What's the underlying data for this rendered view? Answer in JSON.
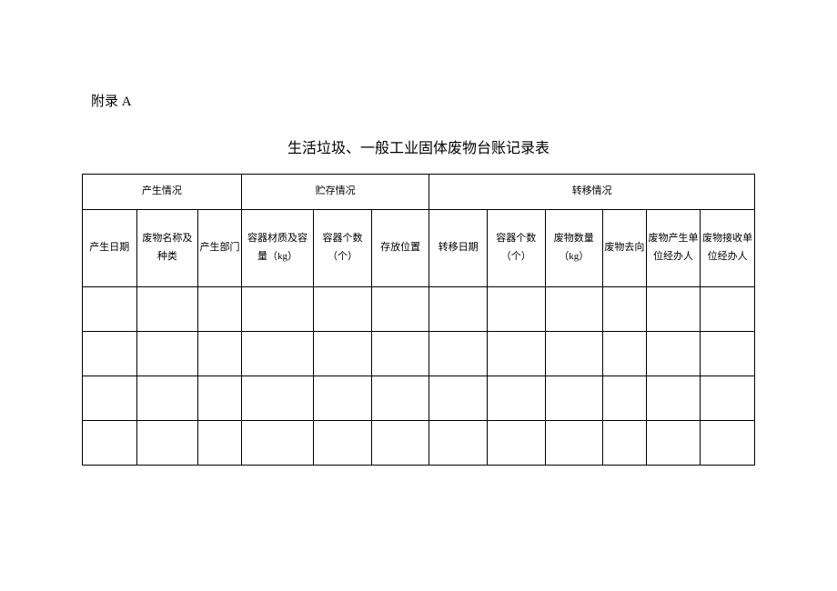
{
  "appendix_label": "附录 A",
  "title": "生活垃圾、一般工业固体废物台账记录表",
  "group_headers": {
    "generation": "产生情况",
    "storage": "贮存情况",
    "transfer": "转移情况"
  },
  "columns": {
    "gen_date": "产生日期",
    "waste_name_type": "废物名称及种类",
    "gen_dept": "产生部门",
    "container_material_capacity": "容器材质及容量（kg）",
    "container_count_storage": "容器个数（个）",
    "storage_location": "存放位置",
    "transfer_date": "转移日期",
    "container_count_transfer": "容器个数（个）",
    "waste_qty": "废物数量（kg）",
    "waste_dest": "废物去向",
    "gen_unit_handler": "废物产生单位经办人",
    "recv_unit_handler": "废物接收单位经办人"
  },
  "table_style": {
    "border_color": "#000000",
    "background_color": "#ffffff",
    "header_fontsize": 11,
    "data_rows": 4
  }
}
